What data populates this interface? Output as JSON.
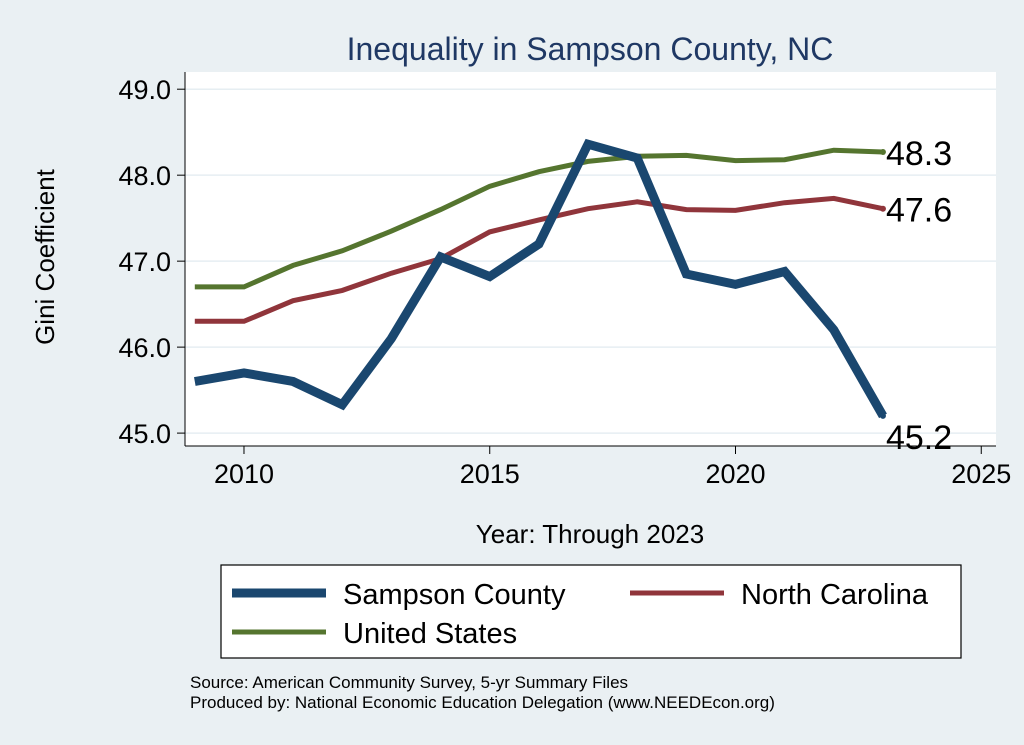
{
  "chart_data": {
    "type": "line",
    "title": "Inequality in Sampson County, NC",
    "xlabel": "Year: Through 2023",
    "ylabel": "Gini Coefficient",
    "xlim": [
      2008.8,
      2025.3
    ],
    "ylim": [
      44.85,
      49.2
    ],
    "x_ticks": [
      2010,
      2015,
      2020,
      2025
    ],
    "y_ticks": [
      45,
      46,
      47,
      48,
      49
    ],
    "y_tick_labels": [
      "45.0",
      "46.0",
      "47.0",
      "48.0",
      "49.0"
    ],
    "x": [
      2009,
      2010,
      2011,
      2012,
      2013,
      2014,
      2015,
      2016,
      2017,
      2018,
      2019,
      2020,
      2021,
      2022,
      2023
    ],
    "series": [
      {
        "name": "Sampson County",
        "color": "#1a476f",
        "values": [
          45.6,
          45.7,
          45.6,
          45.33,
          46.1,
          47.05,
          46.82,
          47.2,
          48.36,
          48.2,
          46.85,
          46.73,
          46.88,
          46.2,
          45.2
        ],
        "end_label": "45.2"
      },
      {
        "name": "North Carolina",
        "color": "#90353b",
        "values": [
          46.3,
          46.3,
          46.54,
          46.66,
          46.86,
          47.03,
          47.34,
          47.48,
          47.61,
          47.69,
          47.6,
          47.59,
          47.68,
          47.73,
          47.61
        ],
        "end_label": "47.6"
      },
      {
        "name": "United States",
        "color": "#55752f",
        "values": [
          46.7,
          46.7,
          46.95,
          47.12,
          47.35,
          47.6,
          47.87,
          48.04,
          48.16,
          48.22,
          48.23,
          48.17,
          48.18,
          48.29,
          48.27
        ],
        "end_label": "48.3"
      }
    ],
    "legend_position": "bottom"
  },
  "footer": {
    "source": "Source: American Community Survey, 5-yr Summary Files",
    "producer": "Produced by: National Economic Education Delegation (www.NEEDEcon.org)"
  }
}
